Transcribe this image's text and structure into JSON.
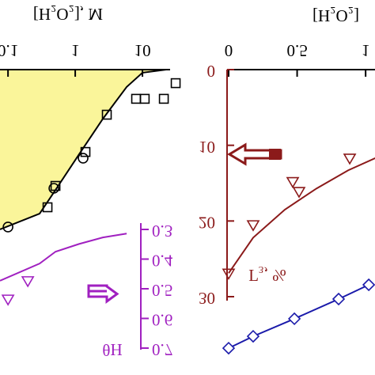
{
  "chart_data": [
    {
      "type": "scatter",
      "xlabel": "[H₂O₂], M",
      "xscale": "log",
      "xlim": [
        0.076,
        38.7
      ],
      "xticks": [
        0.1,
        1,
        10
      ],
      "ylim": [
        0,
        1
      ],
      "y2label": "θH",
      "y2lim": [
        0.3,
        0.7
      ],
      "y2ticks": [
        0.3,
        0.4,
        0.5,
        0.6,
        0.7
      ],
      "y2color": "#a020c0",
      "series": [
        {
          "color": "#000000",
          "fill": "#faf59a",
          "line": true,
          "marker": null,
          "x": [
            0.076,
            0.295,
            0.509,
            1.14,
            2.58,
            5.82,
            10,
            22.5
          ],
          "values": [
            0.673,
            0.607,
            0.507,
            0.357,
            0.207,
            0.073,
            0.013,
            0
          ]
        },
        {
          "color": "#000000",
          "line": false,
          "marker": "square",
          "x": [
            31.2,
            20.8,
            10.8,
            8.05,
            2.95,
            1.42,
            0.508,
            0.387
          ],
          "values": [
            0.057,
            0.123,
            0.123,
            0.123,
            0.19,
            0.347,
            0.49,
            0.58
          ]
        },
        {
          "color": "#000000",
          "line": false,
          "marker": "circle",
          "x": [
            1.31,
            0.481,
            0.1
          ],
          "values": [
            0.373,
            0.5,
            0.663
          ]
        },
        {
          "color": "#a020c0",
          "line": true,
          "marker": null,
          "axis": "y2",
          "x": [
            0.076,
            0.295,
            0.509,
            1.14,
            2.58,
            5.82
          ],
          "values": [
            0.473,
            0.415,
            0.375,
            0.349,
            0.327,
            0.314
          ]
        },
        {
          "color": "#a020c0",
          "line": false,
          "marker": "triangle",
          "axis": "y2",
          "x": [
            0.1,
            0.197
          ],
          "values": [
            0.535,
            0.473
          ]
        }
      ]
    },
    {
      "type": "scatter",
      "xlabel": "[H₂O₂]",
      "xlim": [
        0,
        1.08
      ],
      "xticks": [
        0,
        0.5,
        1
      ],
      "ylabel": "Γ₃, %",
      "ylim": [
        0,
        30
      ],
      "yticks": [
        0,
        10,
        20,
        30
      ],
      "ycolor": "#8b1a1a",
      "y2lim": [
        0,
        1
      ],
      "series": [
        {
          "color": "#8b1a1a",
          "line": true,
          "marker": null,
          "x": [
            0,
            0.179,
            0.41,
            0.642,
            0.873,
            1.07
          ],
          "values": [
            26.9,
            22.2,
            18.5,
            15.7,
            13.3,
            11.7
          ]
        },
        {
          "color": "#8b1a1a",
          "line": false,
          "marker": "triangle",
          "x": [
            0,
            0.179,
            0.468,
            0.514,
            0.884
          ],
          "values": [
            26.9,
            20.5,
            14.8,
            16.1,
            11.7
          ]
        },
        {
          "color": "#1a1aaa",
          "line": true,
          "marker": "diamond",
          "axis": "y2",
          "x": [
            0,
            0.179,
            0.48,
            0.803,
            1.023
          ],
          "values": [
            0.113,
            0.163,
            0.237,
            0.32,
            0.38
          ]
        }
      ]
    }
  ]
}
